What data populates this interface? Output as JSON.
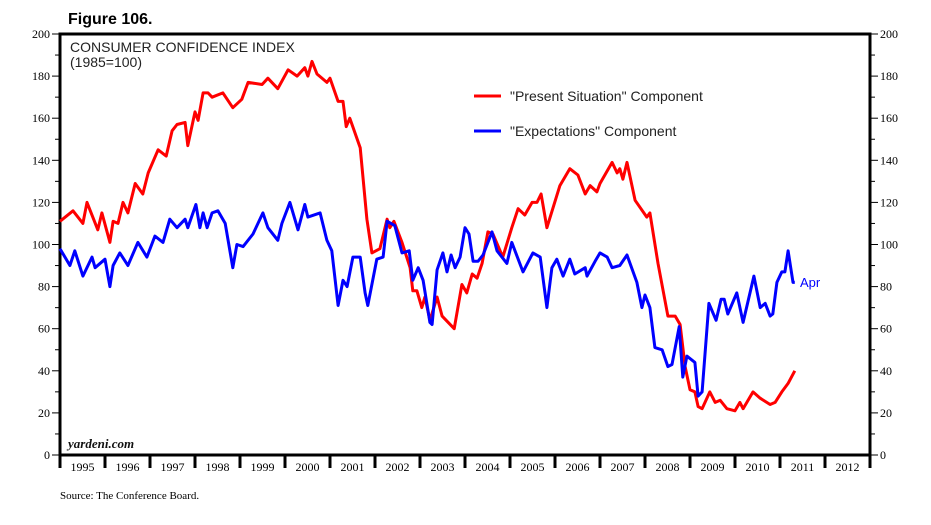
{
  "figure_label": "Figure 106.",
  "source": "Source: The Conference Board.",
  "watermark": "yardeni.com",
  "chart_data": {
    "type": "line",
    "title": "CONSUMER CONFIDENCE INDEX",
    "subtitle": "(1985=100)",
    "ylim": [
      0,
      200
    ],
    "yticks": [
      0,
      20,
      40,
      60,
      80,
      100,
      120,
      140,
      160,
      180,
      200
    ],
    "xlim": [
      1995,
      2013
    ],
    "xtick_labels": [
      "1995",
      "1996",
      "1997",
      "1998",
      "1999",
      "2000",
      "2001",
      "2002",
      "2003",
      "2004",
      "2005",
      "2006",
      "2007",
      "2008",
      "2009",
      "2010",
      "2011",
      "2012"
    ],
    "grid": false,
    "legend_position": "top-right",
    "end_annotation": "Apr",
    "series": [
      {
        "name": "\"Present Situation\" Component",
        "color": "#ff0000",
        "x": [
          1995.0,
          1995.29,
          1995.51,
          1995.6,
          1995.84,
          1995.93,
          1996.11,
          1996.18,
          1996.29,
          1996.4,
          1996.51,
          1996.67,
          1996.84,
          1996.96,
          1997.18,
          1997.36,
          1997.49,
          1997.6,
          1997.78,
          1997.84,
          1998.0,
          1998.07,
          1998.18,
          1998.29,
          1998.38,
          1998.62,
          1998.84,
          1999.04,
          1999.18,
          1999.49,
          1999.62,
          1999.84,
          2000.07,
          2000.27,
          2000.44,
          2000.51,
          2000.6,
          2000.71,
          2000.93,
          2001.0,
          2001.18,
          2001.29,
          2001.36,
          2001.44,
          2001.67,
          2001.82,
          2001.93,
          2002.11,
          2002.27,
          2002.33,
          2002.42,
          2002.6,
          2002.78,
          2002.84,
          2002.93,
          2003.04,
          2003.11,
          2003.22,
          2003.38,
          2003.49,
          2003.76,
          2003.93,
          2004.04,
          2004.16,
          2004.27,
          2004.38,
          2004.51,
          2004.62,
          2004.84,
          2005.04,
          2005.18,
          2005.33,
          2005.49,
          2005.6,
          2005.69,
          2005.82,
          2006.11,
          2006.33,
          2006.51,
          2006.67,
          2006.78,
          2006.93,
          2007.0,
          2007.27,
          2007.38,
          2007.44,
          2007.51,
          2007.6,
          2007.78,
          2008.04,
          2008.11,
          2008.29,
          2008.51,
          2008.67,
          2008.78,
          2008.89,
          2009.0,
          2009.11,
          2009.18,
          2009.27,
          2009.44,
          2009.56,
          2009.67,
          2009.82,
          2010.0,
          2010.11,
          2010.18,
          2010.4,
          2010.56,
          2010.78,
          2010.89,
          2011.04,
          2011.18,
          2011.33
        ],
        "values": [
          111,
          116,
          110,
          120,
          107,
          115,
          101,
          111,
          110,
          120,
          115,
          129,
          124,
          134,
          145,
          142,
          154,
          157,
          158,
          147,
          163,
          159,
          172,
          172,
          170,
          172,
          165,
          169,
          177,
          176,
          179,
          174,
          183,
          180,
          184,
          180,
          187,
          181,
          177,
          179,
          168,
          168,
          156,
          160,
          146,
          112,
          96,
          98,
          112,
          108,
          111,
          101,
          89,
          78,
          78,
          70,
          75,
          64,
          75,
          66,
          60,
          81,
          77,
          86,
          84,
          91,
          106,
          105,
          94,
          108,
          117,
          114,
          120,
          120,
          124,
          108,
          128,
          136,
          133,
          124,
          128,
          125,
          129,
          139,
          134,
          136,
          131,
          139,
          121,
          113,
          115,
          91,
          66,
          66,
          62,
          42,
          31,
          30,
          23,
          22,
          30,
          25,
          26,
          22,
          21,
          25,
          22,
          30,
          27,
          24,
          25,
          30,
          34,
          40
        ]
      },
      {
        "name": "\"Expectations\" Component",
        "color": "#0000ff",
        "x": [
          1995.0,
          1995.22,
          1995.33,
          1995.51,
          1995.71,
          1995.78,
          1996.0,
          1996.11,
          1996.18,
          1996.33,
          1996.51,
          1996.73,
          1996.93,
          1997.11,
          1997.29,
          1997.44,
          1997.6,
          1997.78,
          1997.84,
          1998.02,
          1998.11,
          1998.18,
          1998.27,
          1998.38,
          1998.51,
          1998.67,
          1998.84,
          1998.93,
          1999.07,
          1999.29,
          1999.51,
          1999.62,
          1999.84,
          1999.93,
          2000.11,
          2000.29,
          2000.44,
          2000.51,
          2000.78,
          2000.93,
          2001.04,
          2001.18,
          2001.29,
          2001.38,
          2001.51,
          2001.67,
          2001.78,
          2001.84,
          2002.04,
          2002.18,
          2002.27,
          2002.44,
          2002.6,
          2002.76,
          2002.84,
          2002.96,
          2003.07,
          2003.22,
          2003.27,
          2003.38,
          2003.51,
          2003.6,
          2003.69,
          2003.78,
          2003.89,
          2004.0,
          2004.09,
          2004.18,
          2004.29,
          2004.4,
          2004.6,
          2004.71,
          2004.93,
          2005.04,
          2005.29,
          2005.51,
          2005.67,
          2005.82,
          2005.93,
          2006.04,
          2006.18,
          2006.33,
          2006.44,
          2006.67,
          2006.71,
          2006.89,
          2007.0,
          2007.16,
          2007.27,
          2007.44,
          2007.6,
          2007.82,
          2007.93,
          2008.0,
          2008.11,
          2008.22,
          2008.38,
          2008.51,
          2008.6,
          2008.76,
          2008.84,
          2008.93,
          2009.11,
          2009.18,
          2009.27,
          2009.42,
          2009.58,
          2009.69,
          2009.76,
          2009.84,
          2010.04,
          2010.18,
          2010.42,
          2010.56,
          2010.67,
          2010.78,
          2010.84,
          2010.93,
          2011.04,
          2011.11,
          2011.18,
          2011.29,
          2011.33
        ],
        "values": [
          98,
          90,
          97,
          85,
          94,
          89,
          93,
          80,
          90,
          96,
          90,
          101,
          94,
          104,
          101,
          112,
          108,
          112,
          108,
          119,
          108,
          115,
          108,
          115,
          116,
          110,
          89,
          100,
          99,
          105,
          115,
          108,
          102,
          110,
          120,
          107,
          119,
          113,
          115,
          102,
          97,
          71,
          83,
          80,
          94,
          94,
          77,
          71,
          93,
          94,
          111,
          109,
          96,
          97,
          83,
          89,
          83,
          63,
          62,
          88,
          96,
          87,
          95,
          89,
          94,
          108,
          105,
          92,
          92,
          95,
          106,
          97,
          91,
          101,
          87,
          96,
          94,
          70,
          89,
          93,
          85,
          93,
          86,
          89,
          85,
          92,
          96,
          94,
          89,
          90,
          95,
          82,
          70,
          76,
          70,
          51,
          50,
          42,
          43,
          61,
          37,
          47,
          44,
          28,
          30,
          72,
          64,
          74,
          74,
          67,
          77,
          63,
          85,
          70,
          72,
          66,
          67,
          82,
          87,
          87,
          97,
          82,
          82
        ]
      }
    ]
  }
}
